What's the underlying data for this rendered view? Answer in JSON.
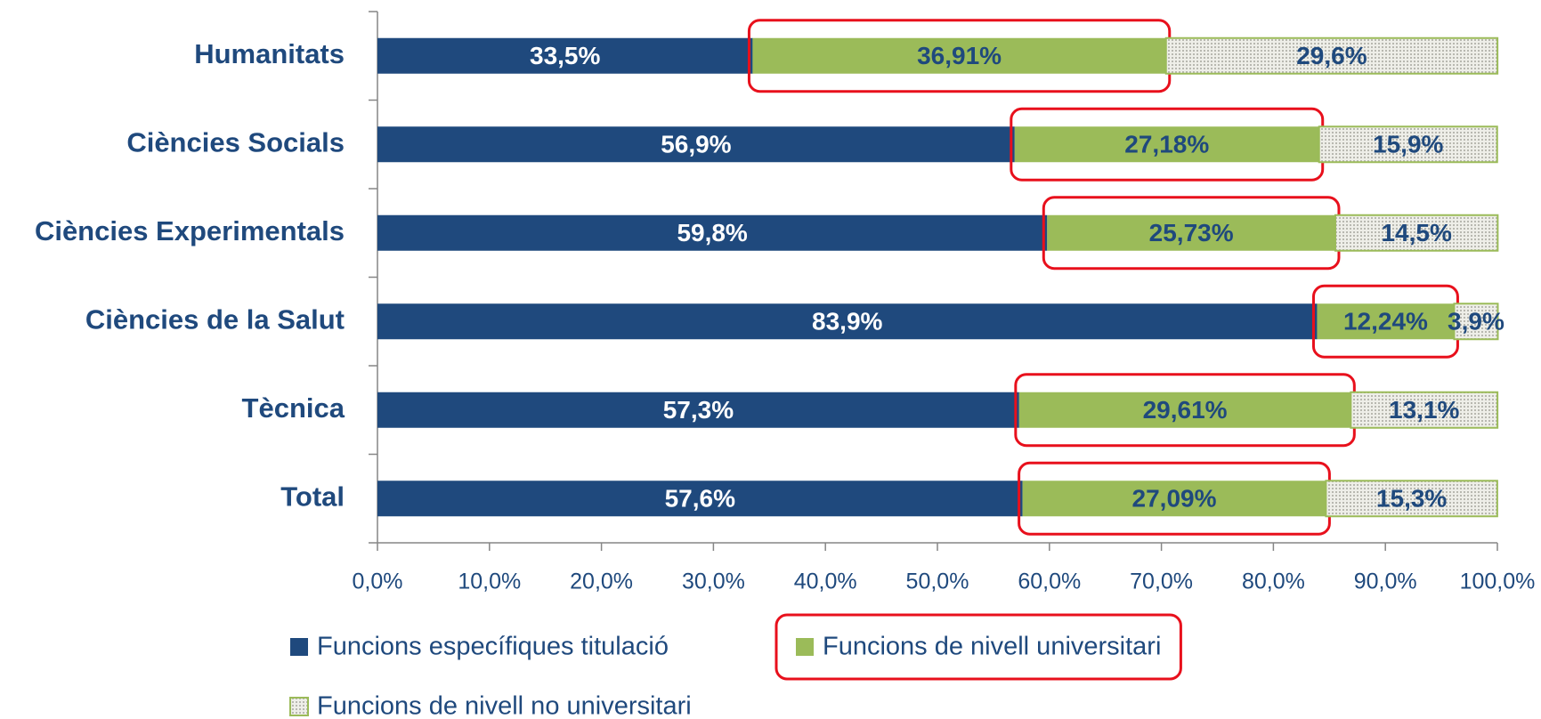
{
  "chart_data": {
    "type": "stacked-barh",
    "categories": [
      "Humanitats",
      "Ciències Socials",
      "Ciències Experimentals",
      "Ciències de la Salut",
      "Tècnica",
      "Total"
    ],
    "series": [
      {
        "name": "Funcions específiques titulació",
        "color": "#1f497d",
        "values": [
          33.5,
          56.9,
          59.8,
          83.9,
          57.3,
          57.6
        ],
        "value_labels": [
          "33,5%",
          "56,9%",
          "59,8%",
          "83,9%",
          "57,3%",
          "57,6%"
        ]
      },
      {
        "name": "Funcions de nivell universitari",
        "color": "#9bbb59",
        "values": [
          36.91,
          27.18,
          25.73,
          12.24,
          29.61,
          27.09
        ],
        "value_labels": [
          "36,91%",
          "27,18%",
          "25,73%",
          "12,24%",
          "29,61%",
          "27,09%"
        ]
      },
      {
        "name": "Funcions de nivell no universitari",
        "color": "#e4e4dc",
        "edgecolor": "#9bbb59",
        "hatch": "dots",
        "values": [
          29.6,
          15.9,
          14.5,
          3.9,
          13.1,
          15.3
        ],
        "value_labels": [
          "29,6%",
          "15,9%",
          "14,5%",
          "3,9%",
          "13,1%",
          "15,3%"
        ]
      }
    ],
    "xlim": [
      0,
      100
    ],
    "xticks": [
      {
        "value": 0,
        "label": "0,0%"
      },
      {
        "value": 10,
        "label": "10,0%"
      },
      {
        "value": 20,
        "label": "20,0%"
      },
      {
        "value": 30,
        "label": "30,0%"
      },
      {
        "value": 40,
        "label": "40,0%"
      },
      {
        "value": 50,
        "label": "50,0%"
      },
      {
        "value": 60,
        "label": "60,0%"
      },
      {
        "value": 70,
        "label": "70,0%"
      },
      {
        "value": 80,
        "label": "80,0%"
      },
      {
        "value": 90,
        "label": "90,0%"
      },
      {
        "value": 100,
        "label": "100,0%"
      }
    ],
    "highlight_series": 1,
    "legend": "bottom"
  }
}
